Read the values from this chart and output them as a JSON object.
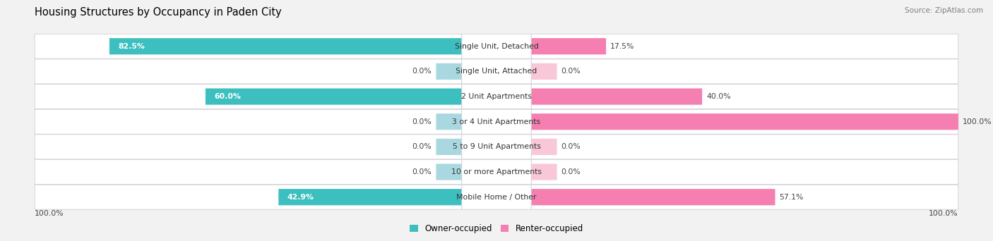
{
  "title": "Housing Structures by Occupancy in Paden City",
  "source": "Source: ZipAtlas.com",
  "categories": [
    "Single Unit, Detached",
    "Single Unit, Attached",
    "2 Unit Apartments",
    "3 or 4 Unit Apartments",
    "5 to 9 Unit Apartments",
    "10 or more Apartments",
    "Mobile Home / Other"
  ],
  "owner_pct": [
    82.5,
    0.0,
    60.0,
    0.0,
    0.0,
    0.0,
    42.9
  ],
  "renter_pct": [
    17.5,
    0.0,
    40.0,
    100.0,
    0.0,
    0.0,
    57.1
  ],
  "owner_color": "#3dbfbf",
  "renter_color": "#f47fb0",
  "owner_zero_color": "#aad8e0",
  "renter_zero_color": "#f9c8d8",
  "bg_color": "#f2f2f2",
  "row_bg_color": "#ffffff",
  "row_edge_color": "#d0d0d8",
  "title_fontsize": 10.5,
  "source_fontsize": 7.5,
  "cat_fontsize": 7.8,
  "pct_fontsize": 7.8,
  "legend_fontsize": 8.5,
  "bar_height": 0.62,
  "zero_stub": 6.0
}
